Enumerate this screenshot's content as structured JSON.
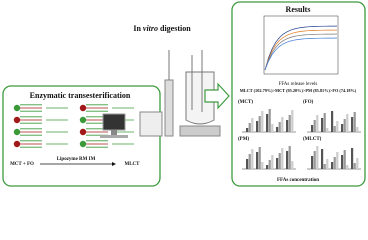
{
  "left_panel": {
    "title": "Enzymatic transesterification",
    "reactants": "MCT + FO",
    "catalyst": "Lipozyme RM IM",
    "product": "MLCT"
  },
  "middle": {
    "title": [
      "In ",
      "vitro",
      " digestion"
    ]
  },
  "right_panel": {
    "title": "Results",
    "chart_caption": "FFAs release levels",
    "ranking": "MLCT (102.79%)>MCT (95.20%)>PM (85.81%)>FO (74.18%)",
    "panels": [
      "(MCT)",
      "(FO)",
      "(PM)",
      "(MLCT)"
    ],
    "footer": "FFAs concentration"
  }
}
